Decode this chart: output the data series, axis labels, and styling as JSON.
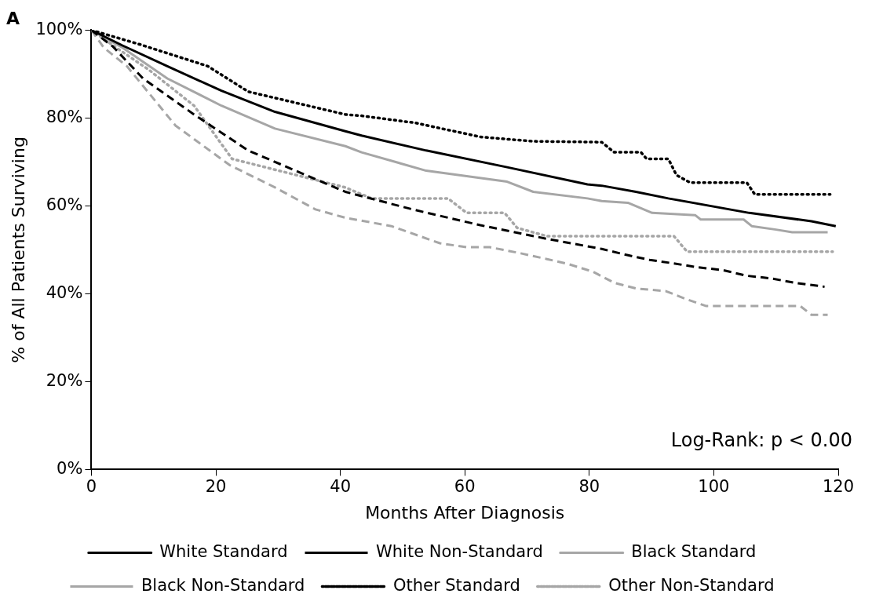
{
  "chart_data": {
    "type": "line",
    "title": "A",
    "xlabel": "Months After Diagnosis",
    "ylabel": "% of All Patients Surviving",
    "xlim": [
      0,
      120
    ],
    "xticks": [
      0,
      20,
      40,
      60,
      80,
      100,
      120
    ],
    "ylim": [
      0,
      100
    ],
    "yticks": [
      {
        "value": 0,
        "label": "0%"
      },
      {
        "value": 20,
        "label": "20%"
      },
      {
        "value": 40,
        "label": "40%"
      },
      {
        "value": 60,
        "label": "60%"
      },
      {
        "value": 80,
        "label": "80%"
      },
      {
        "value": 100,
        "label": "100%"
      }
    ],
    "grid": false,
    "legend": "bottom",
    "marker": "none",
    "annotations": [
      "Log-Rank: p < 0.00"
    ],
    "series": [
      {
        "name": "White Standard",
        "color": "#000000",
        "line_style": "solid",
        "x": [
          0,
          5,
          12.2,
          20.9,
          29.5,
          40.8,
          43.4,
          53.8,
          66.8,
          79.7,
          82,
          87.5,
          92.7,
          105.7,
          115.7,
          119.6
        ],
        "values": [
          100,
          96.5,
          91.8,
          86.2,
          81.4,
          77,
          76,
          72.6,
          68.8,
          64.9,
          64.6,
          63.2,
          61.7,
          58.4,
          56.5,
          55.4
        ]
      },
      {
        "name": "White Non-Standard",
        "color": "#000000",
        "line_style": "dashed",
        "x": [
          0,
          3.5,
          8.3,
          16.5,
          25.2,
          40.8,
          51.6,
          62.5,
          73.2,
          82,
          85.8,
          89.7,
          93.6,
          97.5,
          101.4,
          105.3,
          109.2,
          113,
          117.8
        ],
        "values": [
          100,
          96.2,
          89,
          80.8,
          72.6,
          63.2,
          59.2,
          55.6,
          52.5,
          50.2,
          48.9,
          47.7,
          46.9,
          46,
          45.4,
          44.1,
          43.5,
          42.5,
          41.6
        ]
      },
      {
        "name": "Black Standard",
        "color": "#a6a6a6",
        "line_style": "solid",
        "x": [
          0,
          5,
          12.2,
          20.9,
          29.5,
          40.8,
          43.4,
          53.8,
          66.8,
          71,
          79.7,
          82,
          86.2,
          90.1,
          97,
          97.9,
          104.8,
          106.1,
          110,
          112.6,
          118.3
        ],
        "values": [
          100,
          96,
          89,
          82.8,
          77.6,
          73.6,
          72.2,
          68,
          65.5,
          63.2,
          61.7,
          61.1,
          60.7,
          58.4,
          57.9,
          56.9,
          56.9,
          55.4,
          54.6,
          54,
          54
        ]
      },
      {
        "name": "Black Non-Standard",
        "color": "#a6a6a6",
        "line_style": "dashed",
        "x": [
          0,
          2,
          5.7,
          8.7,
          13.5,
          22.2,
          29.5,
          36,
          40.8,
          48.2,
          56,
          60.3,
          64,
          69,
          73.2,
          76.8,
          80.6,
          84,
          87.5,
          92.3,
          95.7,
          98.8,
          113.9,
          115.7,
          118.3
        ],
        "values": [
          100,
          96,
          91.8,
          86.6,
          78.3,
          69.3,
          64.2,
          59.2,
          57.3,
          55.4,
          51.5,
          50.6,
          50.6,
          49.2,
          47.9,
          46.7,
          45,
          42.5,
          41.2,
          40.6,
          38.7,
          37.2,
          37.2,
          35.2,
          35.2
        ]
      },
      {
        "name": "Other Standard",
        "color": "#000000",
        "line_style": "dotted",
        "x": [
          0,
          7.9,
          18.7,
          25.2,
          40.8,
          43.4,
          52,
          62.5,
          71,
          82,
          84,
          88.3,
          89.2,
          92.7,
          94,
          96.2,
          105.3,
          106.6,
          118.7
        ],
        "values": [
          100,
          96.7,
          91.8,
          86,
          80.8,
          80.5,
          78.9,
          75.7,
          74.7,
          74.5,
          72.2,
          72.2,
          70.7,
          70.7,
          67,
          65.3,
          65.3,
          62.6,
          62.6
        ]
      },
      {
        "name": "Other Non-Standard",
        "color": "#a6a6a6",
        "line_style": "dotted",
        "x": [
          0,
          4,
          9.2,
          16.5,
          22.6,
          40.8,
          45,
          57.3,
          60.3,
          66.4,
          68.4,
          73.2,
          79.7,
          93.6,
          95.7,
          119.1
        ],
        "values": [
          100,
          96,
          91,
          82.8,
          70.7,
          64.2,
          61.7,
          61.7,
          58.4,
          58.4,
          55,
          53.1,
          53.1,
          53.1,
          49.6,
          49.6
        ]
      }
    ]
  }
}
